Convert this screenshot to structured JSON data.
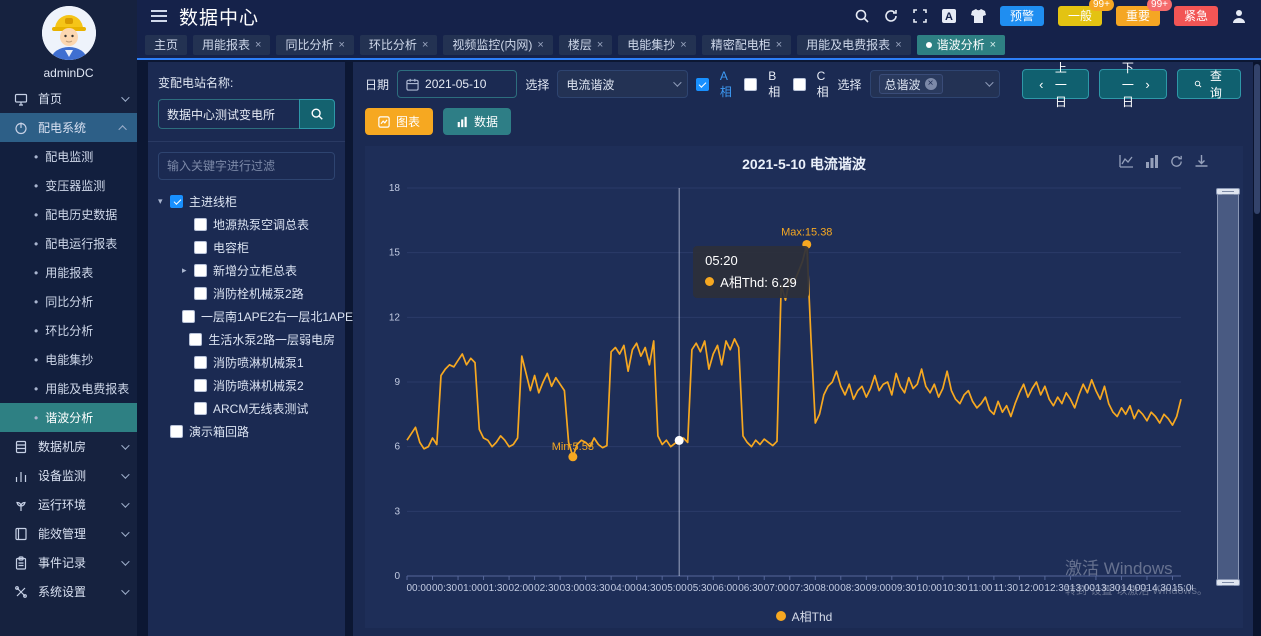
{
  "header": {
    "title": "数据中心",
    "icons": [
      "search",
      "refresh",
      "fullscreen",
      "translate",
      "theme",
      "user"
    ],
    "alarm_buttons": [
      {
        "label": "预警",
        "color": "#1f8ef1",
        "badge": null
      },
      {
        "label": "一般",
        "color": "#e3c312",
        "badge": "99+",
        "badge_color": "#f5a623"
      },
      {
        "label": "重要",
        "color": "#f5a623",
        "badge": "99+",
        "badge_color": "#f56c6c"
      },
      {
        "label": "紧急",
        "color": "#f25555",
        "badge": null
      }
    ]
  },
  "tabs": [
    {
      "label": "主页",
      "closable": false,
      "active": false
    },
    {
      "label": "用能报表",
      "closable": true,
      "active": false
    },
    {
      "label": "同比分析",
      "closable": true,
      "active": false
    },
    {
      "label": "环比分析",
      "closable": true,
      "active": false
    },
    {
      "label": "视频监控(内网)",
      "closable": true,
      "active": false
    },
    {
      "label": "楼层",
      "closable": true,
      "active": false
    },
    {
      "label": "电能集抄",
      "closable": true,
      "active": false
    },
    {
      "label": "精密配电柜",
      "closable": true,
      "active": false
    },
    {
      "label": "用能及电费报表",
      "closable": true,
      "active": false
    },
    {
      "label": "谐波分析",
      "closable": true,
      "active": true
    }
  ],
  "sidebar": {
    "username": "adminDC",
    "menu": [
      {
        "label": "首页",
        "icon": "monitor",
        "expanded": false
      },
      {
        "label": "配电系统",
        "icon": "power",
        "expanded": true,
        "children": [
          "配电监测",
          "变压器监测",
          "配电历史数据",
          "配电运行报表",
          "用能报表",
          "同比分析",
          "环比分析",
          "电能集抄",
          "用能及电费报表",
          "谐波分析"
        ],
        "active_child": "谐波分析"
      },
      {
        "label": "数据机房",
        "icon": "server",
        "expanded": false
      },
      {
        "label": "设备监测",
        "icon": "chart",
        "expanded": false
      },
      {
        "label": "运行环境",
        "icon": "plant",
        "expanded": false
      },
      {
        "label": "能效管理",
        "icon": "book",
        "expanded": false
      },
      {
        "label": "事件记录",
        "icon": "clipboard",
        "expanded": false
      },
      {
        "label": "系统设置",
        "icon": "tools",
        "expanded": false
      }
    ]
  },
  "tree_panel": {
    "station_label": "变配电站名称:",
    "station_value": "数据中心测试变电所",
    "filter_placeholder": "输入关键字进行过滤",
    "tree": [
      {
        "label": "主进线柜",
        "level": 0,
        "checked": true,
        "arrow": "down"
      },
      {
        "label": "地源热泵空调总表",
        "level": 1,
        "checked": false
      },
      {
        "label": "电容柜",
        "level": 1,
        "checked": false
      },
      {
        "label": "新增分立柜总表",
        "level": 1,
        "checked": false,
        "arrow": "right"
      },
      {
        "label": "消防栓机械泵2路",
        "level": 1,
        "checked": false
      },
      {
        "label": "一层南1APE2右一层北1APE1左",
        "level": 1,
        "checked": false
      },
      {
        "label": "生活水泵2路一层弱电房",
        "level": 1,
        "checked": false
      },
      {
        "label": "消防喷淋机械泵1",
        "level": 1,
        "checked": false
      },
      {
        "label": "消防喷淋机械泵2",
        "level": 1,
        "checked": false
      },
      {
        "label": "ARCM无线表测试",
        "level": 1,
        "checked": false
      },
      {
        "label": "演示箱回路",
        "level": 0,
        "checked": false
      }
    ]
  },
  "toolbar": {
    "date_label": "日期",
    "date_value": "2021-05-10",
    "select_label": "选择",
    "type_value": "电流谐波",
    "phases": [
      {
        "label": "A相",
        "checked": true
      },
      {
        "label": "B相",
        "checked": false
      },
      {
        "label": "C相",
        "checked": false
      }
    ],
    "select2_label": "选择",
    "harmonic_tag": "总谐波",
    "prev_button": "上一日",
    "next_button": "下一日",
    "query_button": "查询",
    "chart_button": "图表",
    "data_button": "数据"
  },
  "chart_data": {
    "type": "line",
    "title": "2021-5-10 电流谐波",
    "series_name": "A相Thd",
    "color": "#f6a821",
    "ylim": [
      0,
      18
    ],
    "y_ticks": [
      0,
      3,
      6,
      9,
      12,
      15,
      18
    ],
    "x_start": "00:00",
    "x_interval_minutes": 5,
    "x_tick_labels": [
      "00:00",
      "00:30",
      "01:00",
      "01:30",
      "02:00",
      "02:30",
      "03:00",
      "03:30",
      "04:00",
      "04:30",
      "05:00",
      "05:30",
      "06:00",
      "06:30",
      "07:00",
      "07:30",
      "08:00",
      "08:30",
      "09:00",
      "09:30",
      "10:00",
      "10:30",
      "11:00",
      "11:30",
      "12:00",
      "12:30",
      "13:00",
      "13:30",
      "14:00",
      "14:30",
      "15:00"
    ],
    "values": [
      6.3,
      6.6,
      6.9,
      6.2,
      5.9,
      6.0,
      6.4,
      6.1,
      9.3,
      9.6,
      9.8,
      9.7,
      10.0,
      10.3,
      9.8,
      10.1,
      9.9,
      6.8,
      6.4,
      6.3,
      6.0,
      6.2,
      6.5,
      6.3,
      6.0,
      6.1,
      6.4,
      10.2,
      9.4,
      8.6,
      9.3,
      8.5,
      9.0,
      9.4,
      8.8,
      9.2,
      8.9,
      8.6,
      6.2,
      5.53,
      6.1,
      6.3,
      6.2,
      6.0,
      6.4,
      6.1,
      5.95,
      6.05,
      10.4,
      10.6,
      10.3,
      10.7,
      9.5,
      10.5,
      10.8,
      10.2,
      10.6,
      9.8,
      10.9,
      6.5,
      6.1,
      6.3,
      6.0,
      6.15,
      6.29,
      6.4,
      6.2,
      10.5,
      10.8,
      10.4,
      10.9,
      9.6,
      10.3,
      10.7,
      9.8,
      10.9,
      10.5,
      11.0,
      10.6,
      6.5,
      6.2,
      6.0,
      6.3,
      6.1,
      6.35,
      6.2,
      6.05,
      6.25,
      13.5,
      12.8,
      13.8,
      13.6,
      14.1,
      14.6,
      15.38,
      11.0,
      7.1,
      7.5,
      8.4,
      8.8,
      9.0,
      9.5,
      8.8,
      8.4,
      8.9,
      8.2,
      8.6,
      8.8,
      8.3,
      8.7,
      9.3,
      8.6,
      8.9,
      9.0,
      8.4,
      9.4,
      8.8,
      8.5,
      9.2,
      8.7,
      8.9,
      9.6,
      8.8,
      8.5,
      8.9,
      8.3,
      8.7,
      9.5,
      8.6,
      8.2,
      8.0,
      8.4,
      8.6,
      8.1,
      7.8,
      8.0,
      8.3,
      7.7,
      7.5,
      8.1,
      7.6,
      7.9,
      7.4,
      8.0,
      8.5,
      8.9,
      8.3,
      8.7,
      9.0,
      8.4,
      8.8,
      8.2,
      7.9,
      8.3,
      8.0,
      8.5,
      8.2,
      7.8,
      8.4,
      8.9,
      8.5,
      9.1,
      8.6,
      8.2,
      8.8,
      8.0,
      7.6,
      7.4,
      7.8,
      7.5,
      7.9,
      7.3,
      7.7,
      7.5,
      7.2,
      7.6,
      7.4,
      7.1,
      7.5,
      7.3,
      7.0,
      7.4,
      8.2
    ],
    "markers": {
      "max": {
        "index": 94,
        "time": "07:50",
        "value": 15.38,
        "label": "Max:15.38"
      },
      "min": {
        "index": 39,
        "time": "03:15",
        "value": 5.53,
        "label": "Min:5.53"
      }
    },
    "tooltip": {
      "index": 64,
      "time": "05:20",
      "series": "A相Thd",
      "value": 6.29
    },
    "legend": [
      {
        "name": "A相Thd",
        "color": "#f6a821"
      }
    ],
    "grid": true,
    "legend_position": "bottom"
  },
  "watermark": {
    "line1": "激活 Windows",
    "line2": "转到“设置”以激活 Windows。"
  }
}
